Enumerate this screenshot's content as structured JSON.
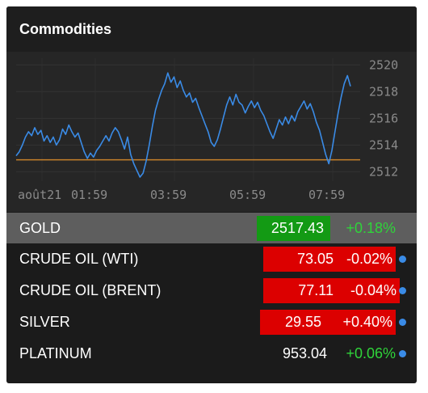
{
  "widget": {
    "title": "Commodities"
  },
  "colors": {
    "up_bg": "#139a14",
    "down_bg": "#dc0000",
    "up_text": "#2fd43a",
    "line": "#3a8be6",
    "reference": "#c7812a",
    "dot": "#3a8be6"
  },
  "chart_data": {
    "type": "line",
    "series_color": "#3a8be6",
    "reference_line": 2512.9,
    "ylim": [
      2511.3,
      2520.5
    ],
    "yticks": [
      2512,
      2514,
      2516,
      2518,
      2520
    ],
    "ytick_labels": [
      "2512",
      "2514",
      "2516",
      "2518",
      "2520"
    ],
    "xtick_labels": [
      "août21",
      "01:59",
      "03:59",
      "05:59",
      "07:59"
    ],
    "grid": true,
    "y": [
      2513.2,
      2513.5,
      2514.0,
      2514.6,
      2515.0,
      2514.7,
      2515.3,
      2514.8,
      2515.1,
      2514.3,
      2514.7,
      2514.2,
      2514.6,
      2514.0,
      2514.4,
      2515.2,
      2514.8,
      2515.5,
      2515.0,
      2514.6,
      2514.9,
      2514.2,
      2513.5,
      2513.0,
      2513.4,
      2513.1,
      2513.6,
      2513.9,
      2514.3,
      2514.7,
      2514.3,
      2514.9,
      2515.3,
      2515.0,
      2514.4,
      2513.7,
      2514.6,
      2513.3,
      2512.6,
      2512.1,
      2511.6,
      2511.9,
      2512.8,
      2514.0,
      2515.4,
      2516.6,
      2517.4,
      2518.1,
      2518.6,
      2519.4,
      2518.7,
      2519.1,
      2518.3,
      2518.8,
      2518.1,
      2517.6,
      2517.9,
      2517.2,
      2517.5,
      2516.8,
      2516.2,
      2515.6,
      2515.0,
      2514.2,
      2513.9,
      2514.4,
      2515.2,
      2516.1,
      2517.0,
      2517.6,
      2517.0,
      2517.8,
      2517.2,
      2517.0,
      2516.4,
      2516.9,
      2517.3,
      2516.8,
      2517.2,
      2516.6,
      2516.2,
      2515.6,
      2515.0,
      2514.5,
      2515.2,
      2515.9,
      2515.5,
      2516.1,
      2515.6,
      2516.2,
      2515.8,
      2516.5,
      2516.9,
      2517.3,
      2516.7,
      2517.1,
      2516.5,
      2515.7,
      2515.1,
      2514.2,
      2513.3,
      2512.6,
      2513.6,
      2515.0,
      2516.4,
      2517.6,
      2518.6,
      2519.2,
      2518.4
    ]
  },
  "rows": [
    {
      "name": "GOLD",
      "price": "2517.43",
      "change": "+0.18%",
      "direction": "up",
      "selected": true
    },
    {
      "name": "CRUDE OIL (WTI)",
      "price": "73.05",
      "change": "-0.02%",
      "direction": "down",
      "selected": false
    },
    {
      "name": "CRUDE OIL (BRENT)",
      "price": "77.11",
      "change": "-0.04%",
      "direction": "down",
      "selected": false
    },
    {
      "name": "SILVER",
      "price": "29.55",
      "change": "+0.40%",
      "direction": "down",
      "selected": false
    },
    {
      "name": "PLATINUM",
      "price": "953.04",
      "change": "+0.06%",
      "direction": "neutral",
      "selected": false
    }
  ]
}
